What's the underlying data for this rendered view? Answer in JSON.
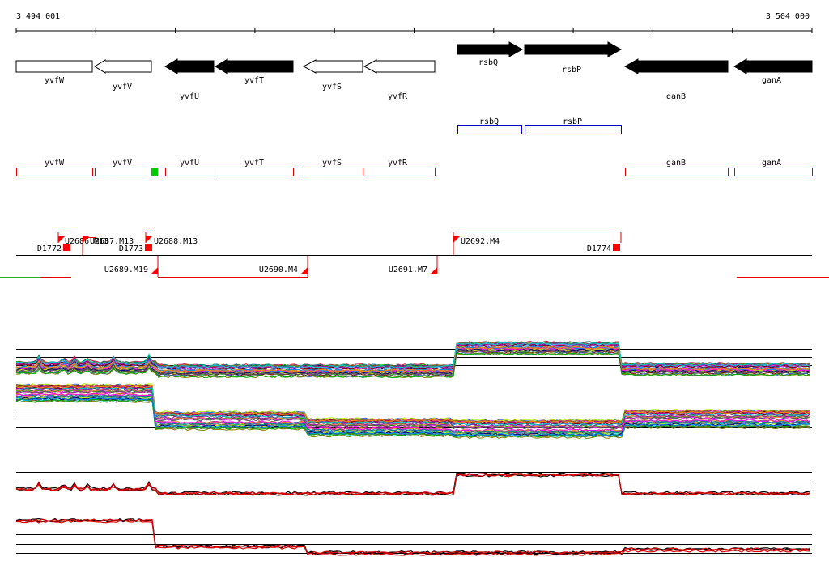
{
  "ruler": {
    "start_label": "3 494 001",
    "end_label": "3 504 000"
  },
  "genes": [
    {
      "name": "yvfW",
      "strand": "+",
      "filled": false
    },
    {
      "name": "yvfV",
      "strand": "-",
      "filled": false
    },
    {
      "name": "yvfU",
      "strand": "-",
      "filled": true
    },
    {
      "name": "yvfT",
      "strand": "-",
      "filled": true
    },
    {
      "name": "yvfS",
      "strand": "-",
      "filled": false
    },
    {
      "name": "yvfR",
      "strand": "-",
      "filled": false
    },
    {
      "name": "rsbQ",
      "strand": "+",
      "filled": true
    },
    {
      "name": "rsbP",
      "strand": "+",
      "filled": true
    },
    {
      "name": "ganB",
      "strand": "-",
      "filled": true
    },
    {
      "name": "ganA",
      "strand": "-",
      "filled": true
    }
  ],
  "blue_boxes": [
    "rsbQ",
    "rsbP"
  ],
  "red_boxes": [
    "yvfW",
    "yvfV",
    "yvfU",
    "yvfT",
    "yvfS",
    "yvfR",
    "ganB",
    "ganA"
  ],
  "upper_tus": [
    "D1772",
    "U2686.M13",
    "U2687.M13",
    "D1773",
    "U2688.M13",
    "U2692.M4",
    "D1774"
  ],
  "lower_tus": [
    "U2689.M19",
    "U2690.M4",
    "U2691.M7"
  ],
  "colors": {
    "gene_fill": "#000000",
    "blue_box": "#0000cc",
    "red_box": "#dd0000",
    "marker": "#ff0000",
    "green_mark": "#00cc00",
    "avg_red": "#dd0000"
  }
}
